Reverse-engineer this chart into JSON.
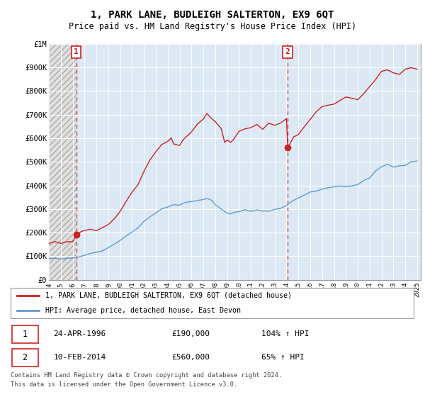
{
  "title": "1, PARK LANE, BUDLEIGH SALTERTON, EX9 6QT",
  "subtitle": "Price paid vs. HM Land Registry's House Price Index (HPI)",
  "ylim": [
    0,
    1000000
  ],
  "yticks": [
    0,
    100000,
    200000,
    300000,
    400000,
    500000,
    600000,
    700000,
    800000,
    900000,
    1000000
  ],
  "ytick_labels": [
    "£0",
    "£100K",
    "£200K",
    "£300K",
    "£400K",
    "£500K",
    "£600K",
    "£700K",
    "£800K",
    "£900K",
    "£1M"
  ],
  "line_color_red": "#cc2222",
  "line_color_blue": "#6699cc",
  "bg_color": "#dce9f5",
  "hatch_color": "#cccccc",
  "grid_color": "#ffffff",
  "sale1_year": 1996.3,
  "sale1_price": 190000,
  "sale2_year": 2014.1,
  "sale2_price": 560000,
  "legend_line1": "1, PARK LANE, BUDLEIGH SALTERTON, EX9 6QT (detached house)",
  "legend_line2": "HPI: Average price, detached house, East Devon",
  "footer1": "Contains HM Land Registry data © Crown copyright and database right 2024.",
  "footer2": "This data is licensed under the Open Government Licence v3.0.",
  "sale1_date": "24-APR-1996",
  "sale1_pct": "104%",
  "sale2_date": "10-FEB-2014",
  "sale2_pct": "65%",
  "xlim_left": 1994.0,
  "xlim_right": 2025.3
}
